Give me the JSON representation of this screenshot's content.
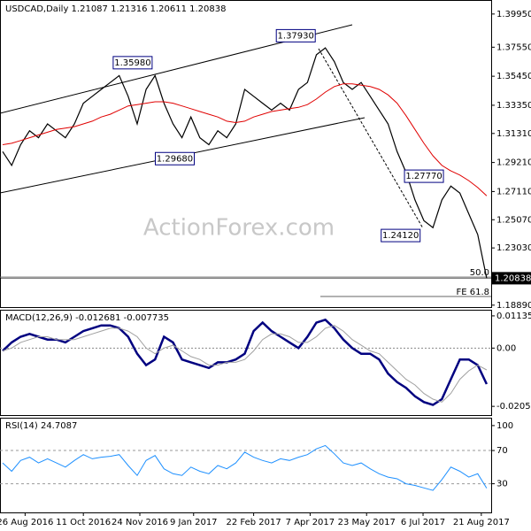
{
  "chart_data": [
    {
      "type": "line",
      "title": "USDCAD,Daily  1.21087 1.21316 1.20611 1.20838",
      "watermark": "ActionForex.com",
      "xlim": [
        -0.3,
        54.5
      ],
      "ylim": [
        1.1875,
        1.409
      ],
      "yticks": [
        {
          "value": 1.3995,
          "label": "1.39950"
        },
        {
          "value": 1.3755,
          "label": "1.37550"
        },
        {
          "value": 1.3545,
          "label": "1.35450"
        },
        {
          "value": 1.3335,
          "label": "1.33350"
        },
        {
          "value": 1.3131,
          "label": "1.31310"
        },
        {
          "value": 1.2921,
          "label": "1.29210"
        },
        {
          "value": 1.2711,
          "label": "1.27110"
        },
        {
          "value": 1.2507,
          "label": "1.25070"
        },
        {
          "value": 1.2303,
          "label": "1.23030"
        },
        {
          "value": 1.1889,
          "label": "1.18890"
        }
      ],
      "series": [
        {
          "name": "USDCAD",
          "color": "#000000",
          "values": [
            1.3,
            1.29,
            1.305,
            1.315,
            1.31,
            1.32,
            1.315,
            1.31,
            1.32,
            1.335,
            1.34,
            1.345,
            1.35,
            1.355,
            1.34,
            1.32,
            1.345,
            1.355,
            1.335,
            1.32,
            1.31,
            1.325,
            1.31,
            1.305,
            1.315,
            1.31,
            1.32,
            1.345,
            1.34,
            1.335,
            1.33,
            1.335,
            1.33,
            1.345,
            1.35,
            1.37,
            1.375,
            1.365,
            1.35,
            1.345,
            1.35,
            1.34,
            1.33,
            1.32,
            1.3,
            1.285,
            1.265,
            1.25,
            1.245,
            1.265,
            1.275,
            1.27,
            1.255,
            1.24,
            1.20838
          ]
        },
        {
          "name": "MA",
          "color": "#e00000",
          "values": [
            1.305,
            1.306,
            1.308,
            1.31,
            1.312,
            1.314,
            1.316,
            1.317,
            1.318,
            1.32,
            1.322,
            1.325,
            1.327,
            1.33,
            1.333,
            1.334,
            1.335,
            1.336,
            1.336,
            1.335,
            1.333,
            1.331,
            1.329,
            1.327,
            1.325,
            1.322,
            1.321,
            1.322,
            1.325,
            1.327,
            1.329,
            1.33,
            1.331,
            1.332,
            1.334,
            1.338,
            1.343,
            1.347,
            1.349,
            1.349,
            1.348,
            1.347,
            1.345,
            1.341,
            1.335,
            1.326,
            1.316,
            1.306,
            1.297,
            1.29,
            1.286,
            1.283,
            1.279,
            1.274,
            1.268
          ]
        }
      ],
      "annotations": [
        {
          "x": 14.5,
          "value": 1.3598,
          "label": "1.35980"
        },
        {
          "x": 32.7,
          "value": 1.3793,
          "label": "1.37930"
        },
        {
          "x": 19.2,
          "value": 1.2968,
          "label": "1.29680"
        },
        {
          "x": 47,
          "value": 1.2777,
          "label": "1.27770"
        },
        {
          "x": 44.4,
          "value": 1.2412,
          "label": "1.24120"
        }
      ],
      "levels": [
        {
          "label": "50.0",
          "value": 1.2092
        },
        {
          "label": "FE 61.8",
          "value": 1.1952
        }
      ]
    },
    {
      "type": "line",
      "title": "MACD(12,26,9) -0.012681 -0.007735",
      "xlim": [
        -0.3,
        54.5
      ],
      "ylim": [
        -0.0236,
        0.0132
      ],
      "yticks": [
        0.011355,
        {
          "value": 0,
          "label": "0.00"
        },
        -0.020531
      ],
      "series": [
        {
          "name": "MACD",
          "color": "#000080",
          "values": [
            -0.001,
            0.002,
            0.004,
            0.005,
            0.004,
            0.003,
            0.003,
            0.002,
            0.004,
            0.006,
            0.007,
            0.008,
            0.008,
            0.007,
            0.004,
            -0.002,
            -0.006,
            -0.004,
            0.004,
            0.002,
            -0.004,
            -0.005,
            -0.006,
            -0.007,
            -0.005,
            -0.005,
            -0.004,
            -0.002,
            0.006,
            0.009,
            0.006,
            0.004,
            0.002,
            0.0,
            0.004,
            0.009,
            0.01,
            0.007,
            0.003,
            0.0,
            -0.002,
            -0.002,
            -0.004,
            -0.009,
            -0.012,
            -0.014,
            -0.017,
            -0.019,
            -0.02,
            -0.018,
            -0.011,
            -0.004,
            -0.004,
            -0.006,
            -0.0127
          ]
        },
        {
          "name": "Signal",
          "color": "#a0a0a0",
          "values": [
            -0.001,
            0.0,
            0.002,
            0.003,
            0.004,
            0.004,
            0.003,
            0.003,
            0.003,
            0.004,
            0.005,
            0.006,
            0.007,
            0.007,
            0.006,
            0.004,
            0.0,
            -0.002,
            0.0,
            0.001,
            -0.001,
            -0.003,
            -0.004,
            -0.006,
            -0.006,
            -0.005,
            -0.005,
            -0.004,
            -0.001,
            0.003,
            0.005,
            0.005,
            0.004,
            0.002,
            0.002,
            0.004,
            0.007,
            0.008,
            0.006,
            0.003,
            0.001,
            -0.001,
            -0.002,
            -0.005,
            -0.008,
            -0.011,
            -0.013,
            -0.016,
            -0.018,
            -0.019,
            -0.016,
            -0.011,
            -0.008,
            -0.006,
            -0.0077
          ]
        }
      ]
    },
    {
      "type": "line",
      "title": "RSI(14) 24.7087",
      "xlim": [
        -0.3,
        54.5
      ],
      "ylim": [
        -4.5,
        108.4
      ],
      "yticks": [
        100,
        70,
        30
      ],
      "grid_lines": [
        70,
        30
      ],
      "xticks": [
        {
          "value": 2.5,
          "label": "26 Aug 2016"
        },
        {
          "value": 9.0,
          "label": "11 Oct 2016"
        },
        {
          "value": 15.3,
          "label": "24 Nov 2016"
        },
        {
          "value": 21.3,
          "label": "9 Jan 2017"
        },
        {
          "value": 28.0,
          "label": "22 Feb 2017"
        },
        {
          "value": 34.3,
          "label": "7 Apr 2017"
        },
        {
          "value": 40.6,
          "label": "23 May 2017"
        },
        {
          "value": 46.9,
          "label": "6 Jul 2017"
        },
        {
          "value": 53.4,
          "label": "21 Aug 2017"
        }
      ],
      "series": [
        {
          "name": "RSI",
          "color": "#1e90ff",
          "values": [
            55,
            45,
            58,
            62,
            55,
            60,
            55,
            50,
            58,
            65,
            60,
            62,
            63,
            65,
            52,
            40,
            58,
            64,
            48,
            42,
            40,
            50,
            45,
            42,
            52,
            48,
            55,
            68,
            62,
            58,
            55,
            60,
            58,
            62,
            65,
            72,
            76,
            66,
            55,
            52,
            55,
            48,
            42,
            38,
            36,
            30,
            28,
            25,
            22,
            35,
            50,
            45,
            38,
            42,
            24.7087
          ]
        }
      ]
    }
  ]
}
